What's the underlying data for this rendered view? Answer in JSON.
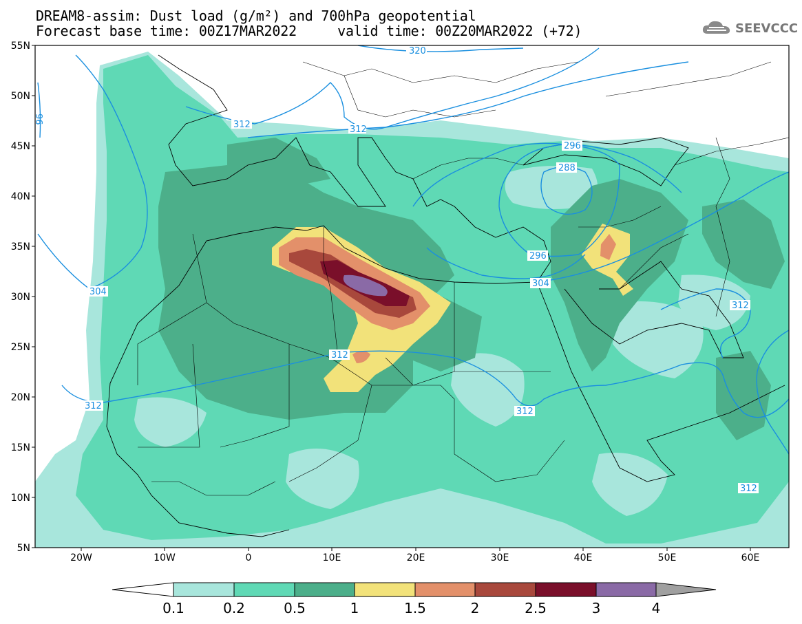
{
  "header": {
    "title_line1": "DREAM8-assim: Dust load (g/m²) and 700hPa geopotential",
    "title_line2": "Forecast base time: 00Z17MAR2022     valid time: 00Z20MAR2022 (+72)",
    "logo_text": "SEEVCCC"
  },
  "map": {
    "lon_range": [
      -25,
      65
    ],
    "lat_range": [
      5,
      55
    ],
    "lat_ticks": [
      "55N",
      "50N",
      "45N",
      "40N",
      "35N",
      "30N",
      "25N",
      "20N",
      "15N",
      "10N",
      "5N"
    ],
    "lon_ticks": [
      "20W",
      "10W",
      "0",
      "10E",
      "20E",
      "30E",
      "40E",
      "50E",
      "60E"
    ],
    "contour_labels": [
      "320",
      "312",
      "312",
      "296",
      "288",
      "296",
      "304",
      "304",
      "312",
      "312",
      "312",
      "312",
      "312",
      "96"
    ],
    "geopotential_color": "#1a8fdf",
    "border_color": "#000000"
  },
  "colorbar": {
    "levels": [
      "0.1",
      "0.2",
      "0.5",
      "1",
      "1.5",
      "2",
      "2.5",
      "3",
      "4"
    ],
    "colors": [
      "#a8e6dc",
      "#5fd9b5",
      "#4caf8a",
      "#f2e27a",
      "#e3906a",
      "#a8483c",
      "#7a0f2a",
      "#8a6aa6"
    ],
    "under_color": "#ffffff",
    "over_color": "#a0a0a0"
  }
}
